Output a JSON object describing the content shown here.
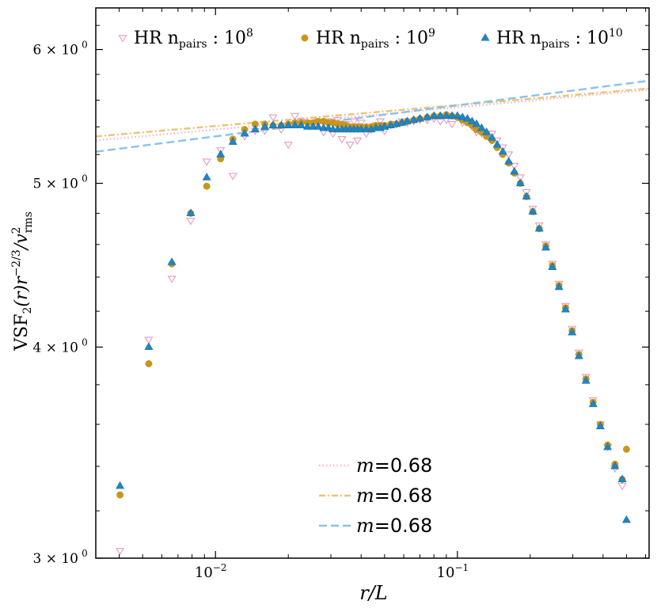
{
  "chart_data": {
    "type": "scatter",
    "title": "",
    "xlabel": "r/L",
    "ylabel": "VSF₂(r)r^{-2/3}/v²_rms",
    "xscale": "log",
    "yscale": "log",
    "xlim": [
      0.0032,
      0.62
    ],
    "ylim": [
      3.0,
      6.35
    ],
    "x_ticks": [
      {
        "value": 0.01,
        "base": "10",
        "exp": "−2"
      },
      {
        "value": 0.1,
        "base": "10",
        "exp": "−1"
      }
    ],
    "y_ticks": [
      {
        "value": 3,
        "mant": "3",
        "exp": "0"
      },
      {
        "value": 4,
        "mant": "4",
        "exp": "0"
      },
      {
        "value": 5,
        "mant": "5",
        "exp": "0"
      },
      {
        "value": 6,
        "mant": "6",
        "exp": "0"
      }
    ],
    "grid": false,
    "legend_top": {
      "placement": "top",
      "entries": [
        {
          "prefix": "HR n",
          "sub": "pairs",
          "suffix": " : 10",
          "exp": "8",
          "marker": "triangle-down-open",
          "color": "#e59ac1"
        },
        {
          "prefix": "HR n",
          "sub": "pairs",
          "suffix": " : 10",
          "exp": "9",
          "marker": "circle",
          "color": "#c8961a"
        },
        {
          "prefix": "HR n",
          "sub": "pairs",
          "suffix": " : 10",
          "exp": "10",
          "marker": "triangle-up",
          "color": "#1f86c2"
        }
      ]
    },
    "legend_bottom": {
      "placement": "lower-center",
      "entries": [
        {
          "label_var": "m",
          "label_val": "=0.68",
          "style": "dotted",
          "color": "#f2b6d2"
        },
        {
          "label_var": "m",
          "label_val": "=0.68",
          "style": "dashdot",
          "color": "#e8c574"
        },
        {
          "label_var": "m",
          "label_val": "=0.68",
          "style": "dashed",
          "color": "#88c3e6"
        }
      ]
    },
    "fit_lines": [
      {
        "color": "#f2b6d2",
        "style": "dotted",
        "slope": 0.68,
        "x": [
          0.0032,
          0.62
        ],
        "y": [
          5.3,
          5.68
        ]
      },
      {
        "color": "#e8c574",
        "style": "dashdot",
        "slope": 0.68,
        "x": [
          0.0032,
          0.62
        ],
        "y": [
          5.33,
          5.69
        ]
      },
      {
        "color": "#88c3e6",
        "style": "dashed",
        "slope": 0.68,
        "x": [
          0.0032,
          0.62
        ],
        "y": [
          5.22,
          5.75
        ]
      }
    ],
    "series": [
      {
        "name": "HR n_pairs : 10^8",
        "marker": "triangle-down-open",
        "color": "#e59ac1",
        "x": [
          0.00403,
          0.0053,
          0.0066,
          0.0079,
          0.0092,
          0.0105,
          0.0118,
          0.0132,
          0.0146,
          0.016,
          0.0173,
          0.0187,
          0.02,
          0.0213,
          0.0226,
          0.024,
          0.0253,
          0.0266,
          0.028,
          0.0293,
          0.0306,
          0.032,
          0.0333,
          0.0346,
          0.036,
          0.0373,
          0.0386,
          0.04,
          0.042,
          0.044,
          0.046,
          0.048,
          0.05,
          0.053,
          0.056,
          0.059,
          0.062,
          0.066,
          0.07,
          0.075,
          0.08,
          0.085,
          0.09,
          0.095,
          0.1,
          0.105,
          0.11,
          0.115,
          0.12,
          0.126,
          0.132,
          0.139,
          0.146,
          0.154,
          0.163,
          0.172,
          0.182,
          0.193,
          0.205,
          0.218,
          0.232,
          0.247,
          0.263,
          0.28,
          0.298,
          0.318,
          0.34,
          0.364,
          0.39,
          0.418,
          0.448,
          0.48
        ],
        "y": [
          3.03,
          4.04,
          4.39,
          4.75,
          5.15,
          5.23,
          5.05,
          5.33,
          5.37,
          5.37,
          5.47,
          5.38,
          5.27,
          5.48,
          5.44,
          5.43,
          5.42,
          5.44,
          5.36,
          5.44,
          5.35,
          5.45,
          5.31,
          5.42,
          5.27,
          5.44,
          5.3,
          5.43,
          5.35,
          5.38,
          5.41,
          5.44,
          5.37,
          5.41,
          5.42,
          5.44,
          5.43,
          5.44,
          5.45,
          5.45,
          5.46,
          5.44,
          5.45,
          5.42,
          5.47,
          5.43,
          5.44,
          5.4,
          5.36,
          5.35,
          5.35,
          5.35,
          5.3,
          5.25,
          5.2,
          5.12,
          5.04,
          4.94,
          4.83,
          4.72,
          4.6,
          4.48,
          4.36,
          4.23,
          4.1,
          3.97,
          3.84,
          3.72,
          3.6,
          3.49,
          3.39,
          3.31
        ]
      },
      {
        "name": "HR n_pairs : 10^9",
        "marker": "circle",
        "color": "#c8961a",
        "x": [
          0.00403,
          0.0053,
          0.0066,
          0.0079,
          0.0092,
          0.0105,
          0.0118,
          0.0132,
          0.0146,
          0.016,
          0.0173,
          0.0187,
          0.02,
          0.0213,
          0.0226,
          0.024,
          0.0253,
          0.0266,
          0.028,
          0.0293,
          0.0306,
          0.032,
          0.0333,
          0.0346,
          0.036,
          0.0373,
          0.0386,
          0.04,
          0.042,
          0.044,
          0.046,
          0.048,
          0.05,
          0.053,
          0.056,
          0.059,
          0.062,
          0.066,
          0.07,
          0.075,
          0.08,
          0.085,
          0.09,
          0.095,
          0.1,
          0.105,
          0.11,
          0.115,
          0.12,
          0.126,
          0.132,
          0.139,
          0.146,
          0.154,
          0.163,
          0.172,
          0.182,
          0.193,
          0.205,
          0.218,
          0.232,
          0.247,
          0.263,
          0.28,
          0.298,
          0.318,
          0.34,
          0.364,
          0.39,
          0.418,
          0.448,
          0.48,
          0.5
        ],
        "y": [
          3.27,
          3.91,
          4.48,
          4.8,
          4.98,
          5.17,
          5.31,
          5.38,
          5.42,
          5.42,
          5.41,
          5.41,
          5.42,
          5.43,
          5.43,
          5.43,
          5.43,
          5.44,
          5.44,
          5.43,
          5.43,
          5.42,
          5.42,
          5.41,
          5.4,
          5.4,
          5.4,
          5.4,
          5.4,
          5.4,
          5.41,
          5.41,
          5.41,
          5.42,
          5.42,
          5.43,
          5.44,
          5.45,
          5.46,
          5.47,
          5.48,
          5.48,
          5.49,
          5.48,
          5.47,
          5.45,
          5.43,
          5.41,
          5.38,
          5.36,
          5.33,
          5.3,
          5.25,
          5.2,
          5.14,
          5.07,
          5.0,
          4.91,
          4.81,
          4.7,
          4.59,
          4.47,
          4.35,
          4.22,
          4.09,
          3.96,
          3.83,
          3.71,
          3.6,
          3.5,
          3.41,
          3.34,
          3.48
        ]
      },
      {
        "name": "HR n_pairs : 10^10",
        "marker": "triangle-up",
        "color": "#1f86c2",
        "x": [
          0.00403,
          0.0053,
          0.0066,
          0.0079,
          0.0092,
          0.0105,
          0.0118,
          0.0132,
          0.0146,
          0.016,
          0.0173,
          0.0187,
          0.02,
          0.0213,
          0.0226,
          0.024,
          0.0253,
          0.0266,
          0.028,
          0.0293,
          0.0306,
          0.032,
          0.0333,
          0.0346,
          0.036,
          0.0373,
          0.0386,
          0.04,
          0.042,
          0.044,
          0.046,
          0.048,
          0.05,
          0.053,
          0.056,
          0.059,
          0.062,
          0.066,
          0.07,
          0.075,
          0.08,
          0.085,
          0.09,
          0.095,
          0.1,
          0.105,
          0.11,
          0.115,
          0.12,
          0.126,
          0.132,
          0.139,
          0.146,
          0.154,
          0.163,
          0.172,
          0.182,
          0.193,
          0.205,
          0.218,
          0.232,
          0.247,
          0.263,
          0.28,
          0.298,
          0.318,
          0.34,
          0.364,
          0.39,
          0.418,
          0.448,
          0.48,
          0.5
        ],
        "y": [
          3.31,
          4.0,
          4.49,
          4.8,
          5.04,
          5.2,
          5.29,
          5.35,
          5.38,
          5.4,
          5.41,
          5.41,
          5.41,
          5.41,
          5.41,
          5.4,
          5.4,
          5.4,
          5.39,
          5.39,
          5.38,
          5.38,
          5.38,
          5.38,
          5.38,
          5.38,
          5.38,
          5.38,
          5.38,
          5.38,
          5.39,
          5.39,
          5.4,
          5.41,
          5.42,
          5.43,
          5.44,
          5.45,
          5.46,
          5.47,
          5.48,
          5.48,
          5.48,
          5.48,
          5.48,
          5.47,
          5.46,
          5.44,
          5.42,
          5.39,
          5.36,
          5.32,
          5.27,
          5.22,
          5.15,
          5.08,
          5.0,
          4.91,
          4.81,
          4.7,
          4.58,
          4.46,
          4.34,
          4.21,
          4.08,
          3.95,
          3.82,
          3.7,
          3.59,
          3.49,
          3.4,
          3.34,
          3.16
        ]
      }
    ]
  }
}
